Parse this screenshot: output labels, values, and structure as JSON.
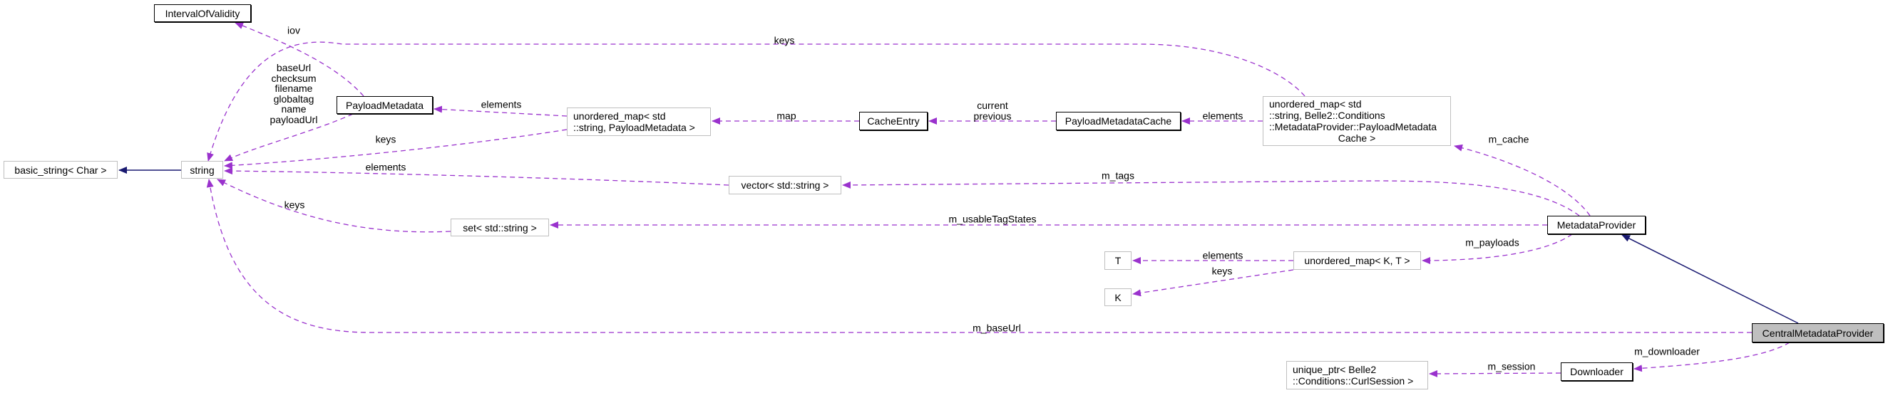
{
  "colors": {
    "usage_edge": "#9a32cd",
    "inheritance_edge": "#191970",
    "selected_fill": "#bfbfbf",
    "doc_border": "#bfbfbf"
  },
  "nodes": {
    "interval_of_validity": "IntervalOfValidity",
    "payload_metadata": "PayloadMetadata",
    "umap_payload_metadata": [
      "unordered_map< std",
      "::string, PayloadMetadata >"
    ],
    "basic_string": "basic_string< Char >",
    "string": "string",
    "set_string": "set< std::string >",
    "cache_entry": "CacheEntry",
    "payload_metadata_cache": "PayloadMetadataCache",
    "umap_cache": [
      "unordered_map< std",
      "::string, Belle2::Conditions",
      "::MetadataProvider::PayloadMetadata",
      "Cache >"
    ],
    "vector_string": "vector< std::string >",
    "metadata_provider": "MetadataProvider",
    "t": "T",
    "umap_kt": "unordered_map< K, T >",
    "k": "K",
    "central_metadata_provider": "CentralMetadataProvider",
    "downloader": "Downloader",
    "unique_ptr_curl": [
      "unique_ptr< Belle2",
      "::Conditions::CurlSession >"
    ]
  },
  "edge_labels": {
    "iov": "iov",
    "fields": [
      "baseUrl",
      "checksum",
      "filename",
      "globaltag",
      "name",
      "payloadUrl"
    ],
    "umap_pm_elements": "elements",
    "umap_pm_keys": "keys",
    "vector_elements": "elements",
    "set_keys": "keys",
    "cache_keys": "keys",
    "map": "map",
    "current_previous": [
      "current",
      "previous"
    ],
    "cache_elements": "elements",
    "m_cache": "m_cache",
    "m_tags": "m_tags",
    "m_usable_tag_states": "m_usableTagStates",
    "m_payloads": "m_payloads",
    "kt_elements": "elements",
    "kt_keys": "keys",
    "m_base_url": "m_baseUrl",
    "m_downloader": "m_downloader",
    "m_session": "m_session"
  }
}
